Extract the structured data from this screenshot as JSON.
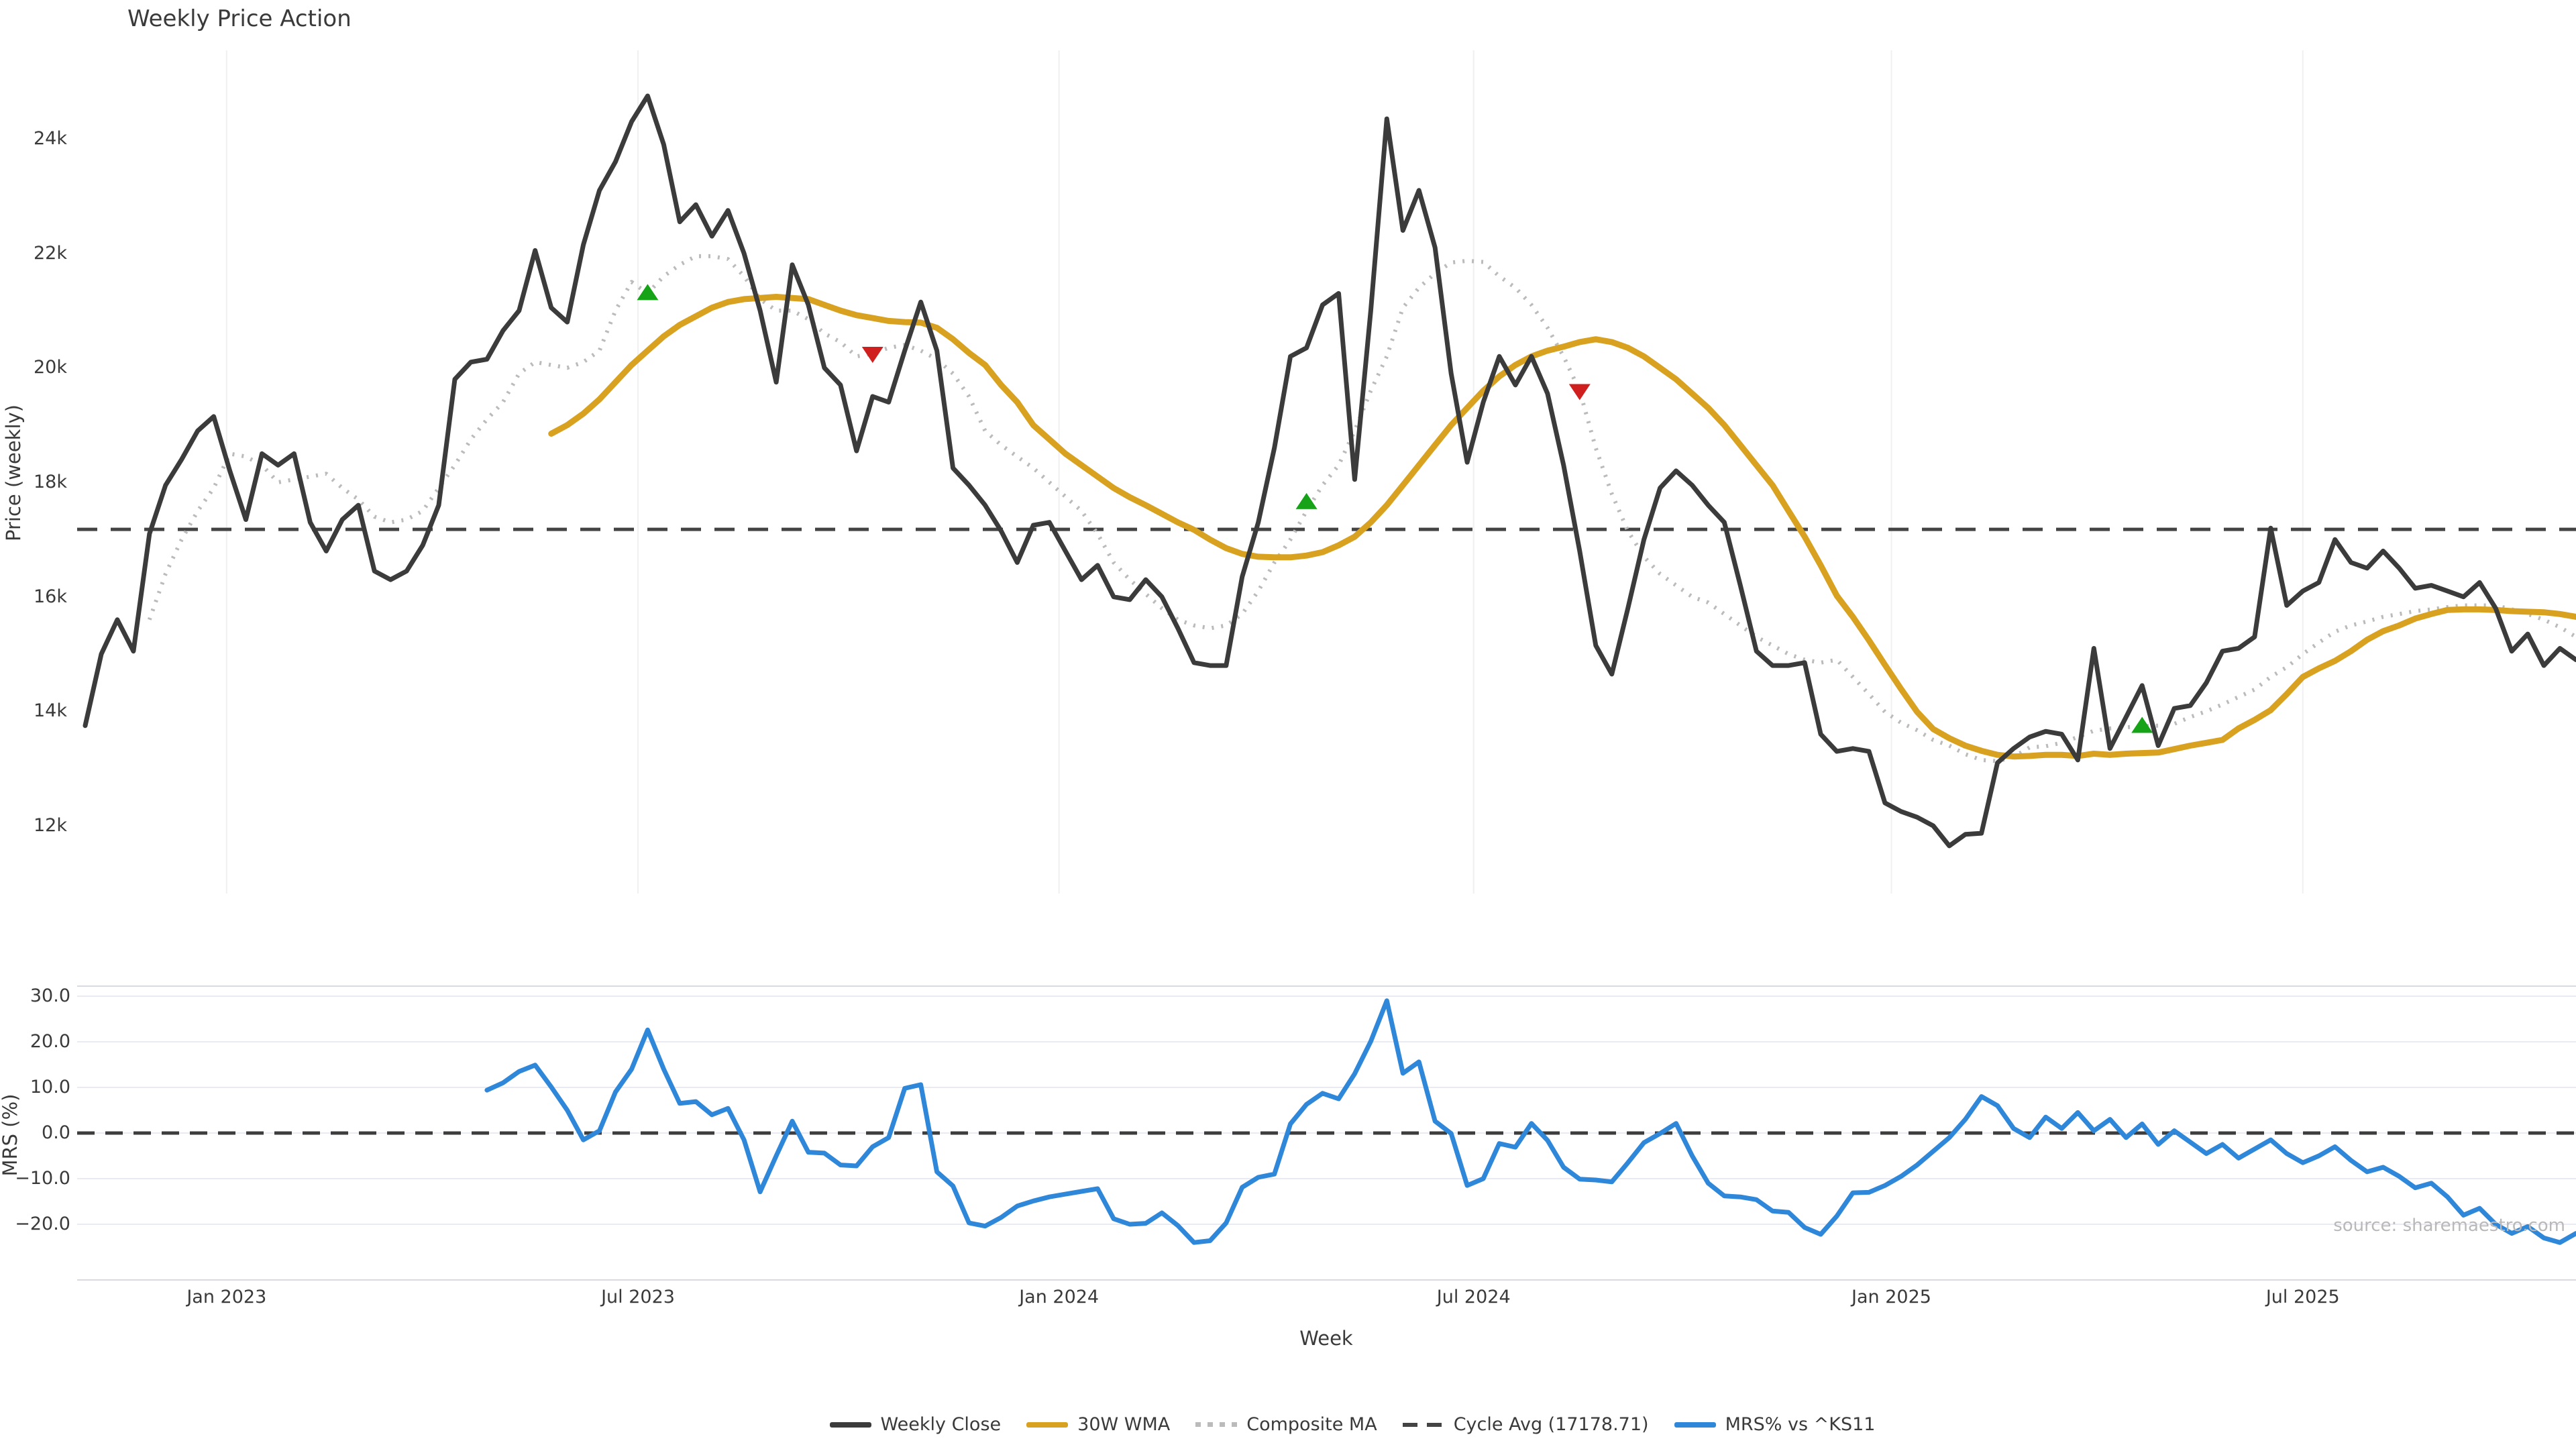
{
  "title": "Weekly Price Action",
  "source_note": "source: sharemaestro.com",
  "price_axis": {
    "label": "Price (weekly)",
    "ticks": [
      {
        "v": 24000,
        "t": "24k"
      },
      {
        "v": 22000,
        "t": "22k"
      },
      {
        "v": 20000,
        "t": "20k"
      },
      {
        "v": 18000,
        "t": "18k"
      },
      {
        "v": 16000,
        "t": "16k"
      },
      {
        "v": 14000,
        "t": "14k"
      },
      {
        "v": 12000,
        "t": "12k"
      }
    ]
  },
  "mrs_axis": {
    "label": "MRS (%)",
    "ticks": [
      {
        "v": 30,
        "t": "30.0"
      },
      {
        "v": 20,
        "t": "20.0"
      },
      {
        "v": 10,
        "t": "10.0"
      },
      {
        "v": 0,
        "t": "0.0"
      },
      {
        "v": -10,
        "t": "−10.0"
      },
      {
        "v": -20,
        "t": "−20.0"
      }
    ]
  },
  "x_axis": {
    "label": "Week",
    "ticks": [
      {
        "w": 8.8,
        "t": "Jan 2023"
      },
      {
        "w": 34.4,
        "t": "Jul 2023"
      },
      {
        "w": 60.6,
        "t": "Jan 2024"
      },
      {
        "w": 86.4,
        "t": "Jul 2024"
      },
      {
        "w": 112.4,
        "t": "Jan 2025"
      },
      {
        "w": 138.0,
        "t": "Jul 2025"
      }
    ]
  },
  "legend": [
    {
      "label": "Weekly Close"
    },
    {
      "label": "30W WMA"
    },
    {
      "label": "Composite MA"
    },
    {
      "label": "Cycle Avg (17178.71)"
    },
    {
      "label": "MRS% vs ^KS11"
    }
  ],
  "colors": {
    "close": "#3b3b3b",
    "wma": "#d8a220",
    "composite": "#bbbbbb",
    "cycle_avg": "#444444",
    "mrs": "#2f87d9",
    "buy_marker": "#17a317",
    "sell_marker": "#d01f1f",
    "grid_vertical": "#f0f0f0",
    "grid_horizontal": "#eaeaf2",
    "spine": "#d9d9e2",
    "zero_line": "#3d3d3d"
  },
  "chart_data": {
    "type": "line",
    "title": "Weekly Price Action",
    "xlabel": "Week",
    "ylabel_top": "Price (weekly)",
    "ylabel_bottom": "MRS (%)",
    "frequency": "weekly",
    "weeks_total": 156,
    "cycle_avg": 17178.71,
    "price_ylim": [
      10840,
      25550
    ],
    "mrs_ylim": [
      -32.5,
      32.2
    ],
    "series": [
      {
        "name": "Weekly Close",
        "panel": "price",
        "start_week": 0,
        "values": [
          13750,
          15000,
          15600,
          15050,
          17100,
          17950,
          18400,
          18900,
          19150,
          18200,
          17350,
          18500,
          18300,
          18500,
          17300,
          16800,
          17350,
          17600,
          16450,
          16300,
          16450,
          16900,
          17600,
          19800,
          20100,
          20150,
          20650,
          21000,
          22050,
          21050,
          20800,
          22150,
          23100,
          23600,
          24300,
          24750,
          23900,
          22550,
          22850,
          22300,
          22750,
          22000,
          21000,
          19750,
          21800,
          21100,
          20000,
          19700,
          18550,
          19500,
          19400,
          20300,
          21150,
          20300,
          18250,
          17950,
          17600,
          17150,
          16600,
          17250,
          17300,
          16800,
          16300,
          16550,
          16000,
          15950,
          16300,
          16000,
          15450,
          14850,
          14800,
          14800,
          16350,
          17300,
          18600,
          20200,
          20350,
          21100,
          21300,
          18050,
          21000,
          24350,
          22400,
          23100,
          22100,
          19900,
          18350,
          19400,
          20200,
          19700,
          20200,
          19550,
          18300,
          16800,
          15150,
          14650,
          15800,
          17000,
          17900,
          18200,
          17950,
          17600,
          17300,
          16200,
          15050,
          14800,
          14800,
          14850,
          13600,
          13300,
          13350,
          13300,
          12400,
          12250,
          12150,
          12000,
          11650,
          11850,
          11870,
          13100,
          13350,
          13550,
          13650,
          13600,
          13150,
          15100,
          13350,
          13900,
          14450,
          13400,
          14050,
          14100,
          14500,
          15050,
          15100,
          15300,
          17200,
          15850,
          16100,
          16250,
          17000,
          16600,
          16500,
          16800,
          16500,
          16150,
          16200,
          16100,
          16000,
          16250,
          15800,
          15050,
          15350,
          14800,
          15100,
          14900
        ]
      },
      {
        "name": "30W WMA",
        "panel": "price",
        "start_week": 29,
        "values": [
          18850,
          19000,
          19200,
          19450,
          19750,
          20050,
          20300,
          20550,
          20750,
          20900,
          21050,
          21150,
          21200,
          21220,
          21240,
          21220,
          21200,
          21100,
          21000,
          20920,
          20870,
          20820,
          20800,
          20790,
          20700,
          20500,
          20260,
          20050,
          19700,
          19400,
          19000,
          18750,
          18500,
          18300,
          18100,
          17900,
          17740,
          17600,
          17450,
          17300,
          17170,
          17000,
          16850,
          16750,
          16700,
          16690,
          16690,
          16720,
          16780,
          16900,
          17050,
          17300,
          17600,
          17950,
          18300,
          18650,
          19000,
          19300,
          19600,
          19850,
          20050,
          20200,
          20300,
          20370,
          20450,
          20500,
          20450,
          20350,
          20200,
          20000,
          19800,
          19550,
          19300,
          19000,
          18650,
          18300,
          17950,
          17500,
          17050,
          16550,
          16020,
          15650,
          15240,
          14810,
          14390,
          13990,
          13690,
          13530,
          13400,
          13310,
          13240,
          13210,
          13220,
          13240,
          13240,
          13220,
          13260,
          13240,
          13260,
          13270,
          13280,
          13340,
          13400,
          13450,
          13500,
          13700,
          13850,
          14020,
          14300,
          14600,
          14750,
          14880,
          15050,
          15250,
          15400,
          15500,
          15620,
          15700,
          15770,
          15780,
          15780,
          15770,
          15750,
          15740,
          15730,
          15700,
          15650
        ]
      },
      {
        "name": "Composite MA",
        "panel": "price",
        "start_week": 4,
        "values": [
          15600,
          16400,
          17000,
          17500,
          17900,
          18500,
          18450,
          18300,
          18000,
          18050,
          18100,
          18150,
          17900,
          17700,
          17400,
          17300,
          17350,
          17500,
          17900,
          18300,
          18750,
          19100,
          19400,
          19900,
          20100,
          20050,
          20000,
          20100,
          20300,
          21000,
          21500,
          21300,
          21600,
          21800,
          21950,
          21950,
          21900,
          21600,
          21200,
          21000,
          21000,
          20850,
          20600,
          20450,
          20200,
          20250,
          20350,
          20400,
          20300,
          20150,
          19900,
          19500,
          18900,
          18650,
          18450,
          18250,
          18000,
          17750,
          17500,
          17100,
          16600,
          16300,
          16050,
          15800,
          15600,
          15500,
          15450,
          15500,
          15700,
          16100,
          16600,
          17000,
          17500,
          17950,
          18300,
          18900,
          19600,
          20200,
          21050,
          21400,
          21650,
          21840,
          21870,
          21850,
          21600,
          21400,
          21100,
          20700,
          20200,
          19600,
          18600,
          17800,
          17150,
          16700,
          16400,
          16200,
          16000,
          15900,
          15700,
          15500,
          15300,
          15150,
          15000,
          14900,
          14850,
          14900,
          14600,
          14300,
          13990,
          13800,
          13670,
          13500,
          13400,
          13250,
          13150,
          13130,
          13200,
          13370,
          13390,
          13450,
          13550,
          13660,
          13700,
          13720,
          13740,
          13750,
          13780,
          13900,
          14000,
          14120,
          14250,
          14380,
          14600,
          14770,
          15000,
          15200,
          15390,
          15500,
          15570,
          15650,
          15700,
          15750,
          15780,
          15820,
          15850,
          15850,
          15850,
          15780,
          15700,
          15600,
          15470,
          15300
        ]
      },
      {
        "name": "MRS% vs ^KS11",
        "panel": "mrs",
        "start_week": 25,
        "values": [
          9.4,
          11.0,
          13.5,
          14.9,
          10.1,
          5.0,
          -1.5,
          0.5,
          9.0,
          14.0,
          22.6,
          14.0,
          6.5,
          6.9,
          4.0,
          5.4,
          -1.5,
          -12.9,
          -5.0,
          2.6,
          -4.2,
          -4.4,
          -7.0,
          -7.2,
          -3.0,
          -1.0,
          9.8,
          10.6,
          -8.5,
          -11.6,
          -19.7,
          -20.4,
          -18.5,
          -16.0,
          -14.9,
          -14.0,
          -13.4,
          -12.8,
          -12.2,
          -18.8,
          -20.0,
          -19.8,
          -17.5,
          -20.3,
          -24.0,
          -23.6,
          -19.7,
          -11.9,
          -9.7,
          -9.0,
          2.0,
          6.3,
          8.7,
          7.5,
          13.0,
          20.1,
          29.0,
          13.1,
          15.6,
          2.6,
          -0.1,
          -11.5,
          -10.0,
          -2.3,
          -3.1,
          2.1,
          -1.6,
          -7.5,
          -10.1,
          -10.3,
          -10.7,
          -6.5,
          -2.1,
          -0.1,
          2.1,
          -5.0,
          -11.0,
          -13.8,
          -14.0,
          -14.6,
          -17.1,
          -17.4,
          -20.7,
          -22.2,
          -18.2,
          -13.1,
          -13.0,
          -11.5,
          -9.5,
          -7.0,
          -4.0,
          -1.0,
          3.0,
          8.0,
          6.0,
          1.0,
          -1.0,
          3.5,
          1.0,
          4.5,
          0.5,
          3.0,
          -1.0,
          2.0,
          -2.5,
          0.5,
          -2.0,
          -4.5,
          -2.5,
          -5.5,
          -3.5,
          -1.5,
          -4.5,
          -6.5,
          -5.0,
          -3.0,
          -6.0,
          -8.5,
          -7.5,
          -9.5,
          -12.0,
          -11.0,
          -14.0,
          -18.0,
          -16.5,
          -20.0,
          -22.0,
          -20.5,
          -23.0,
          -24.0,
          -22.0
        ]
      }
    ],
    "signals": {
      "buy": [
        {
          "week": 35,
          "value": 21300
        },
        {
          "week": 76,
          "value": 17650
        },
        {
          "week": 128,
          "value": 13740
        }
      ],
      "sell": [
        {
          "week": 49,
          "value": 20250
        },
        {
          "week": 93,
          "value": 19600
        }
      ]
    },
    "legend_entries": [
      "Weekly Close",
      "30W WMA",
      "Composite MA",
      "Cycle Avg (17178.71)",
      "MRS% vs ^KS11"
    ],
    "x_tick_labels": [
      "Jan 2023",
      "Jul 2023",
      "Jan 2024",
      "Jul 2024",
      "Jan 2025",
      "Jul 2025"
    ],
    "grid": {
      "price_panel": "vertical",
      "mrs_panel": "horizontal"
    }
  }
}
